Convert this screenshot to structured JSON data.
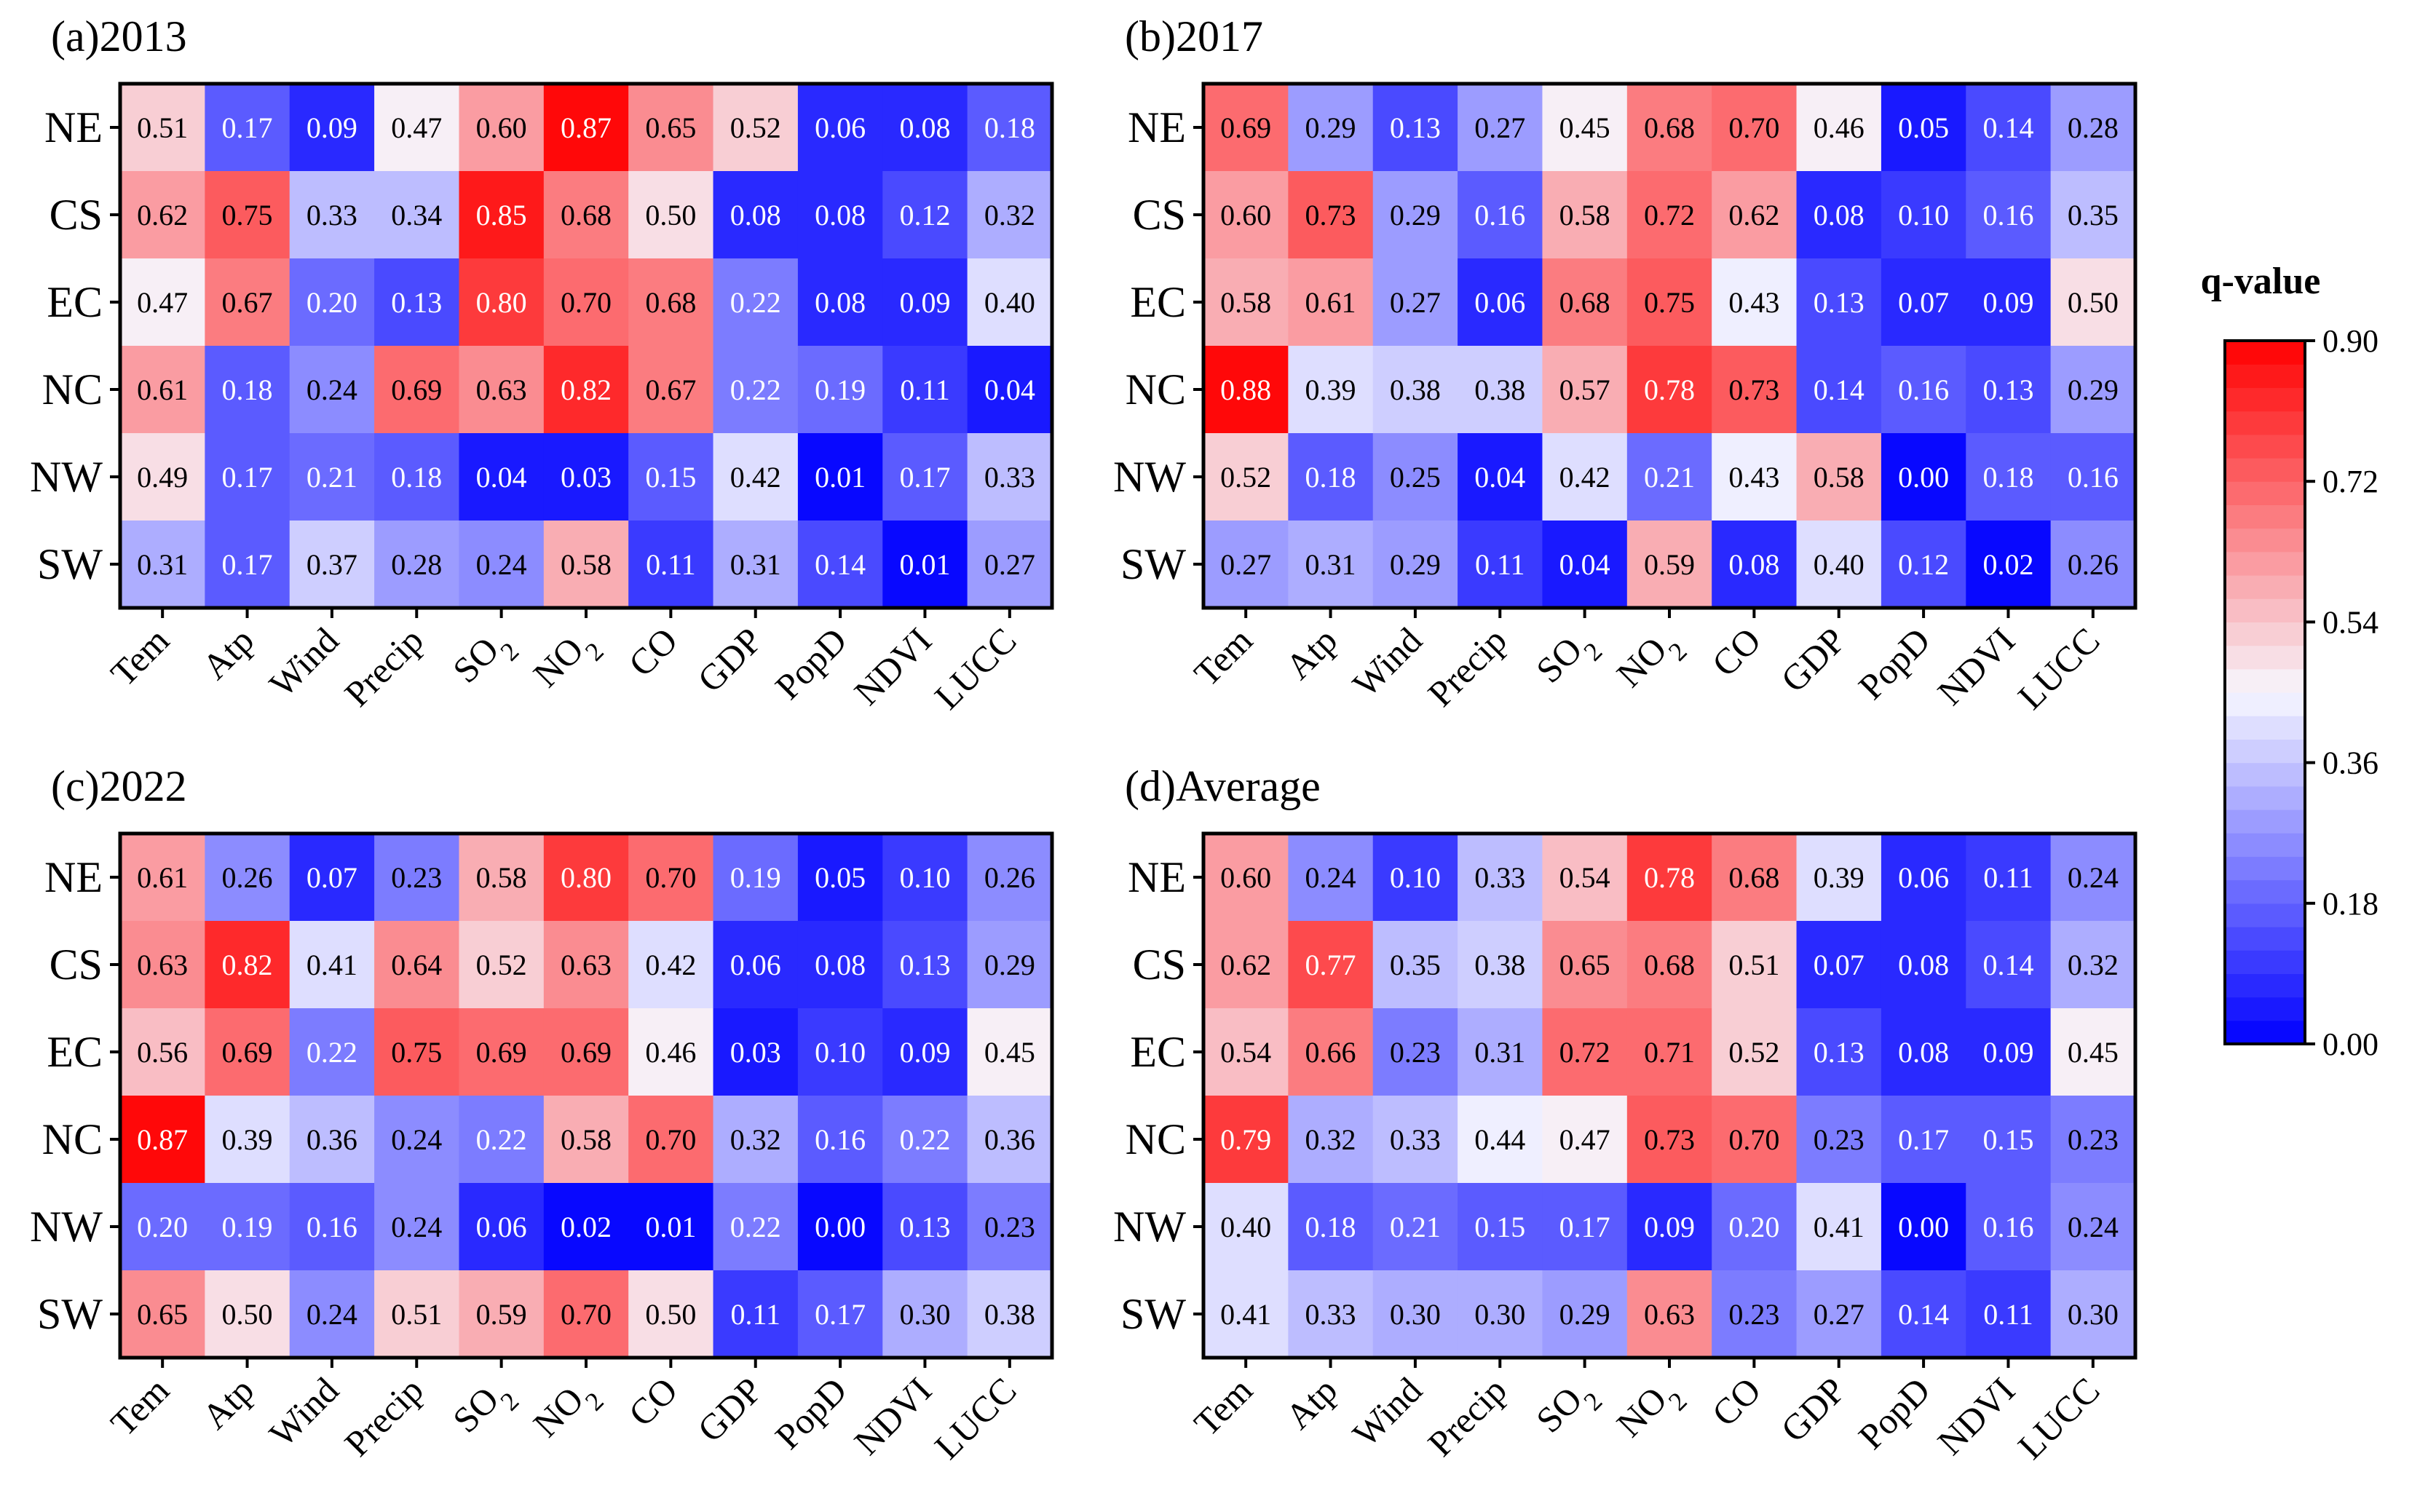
{
  "chart_data": [
    {
      "type": "heatmap",
      "title": "(a)2013",
      "rows": [
        "NE",
        "CS",
        "EC",
        "NC",
        "NW",
        "SW"
      ],
      "columns": [
        "Tem",
        "Atp",
        "Wind",
        "Precip",
        "SO2",
        "NO2",
        "CO",
        "GDP",
        "PopD",
        "NDVI",
        "LUCC"
      ],
      "values": [
        [
          0.51,
          0.17,
          0.09,
          0.47,
          0.6,
          0.87,
          0.65,
          0.52,
          0.06,
          0.08,
          0.18
        ],
        [
          0.62,
          0.75,
          0.33,
          0.34,
          0.85,
          0.68,
          0.5,
          0.08,
          0.08,
          0.12,
          0.32
        ],
        [
          0.47,
          0.67,
          0.2,
          0.13,
          0.8,
          0.7,
          0.68,
          0.22,
          0.08,
          0.09,
          0.4
        ],
        [
          0.61,
          0.18,
          0.24,
          0.69,
          0.63,
          0.82,
          0.67,
          0.22,
          0.19,
          0.11,
          0.04
        ],
        [
          0.49,
          0.17,
          0.21,
          0.18,
          0.04,
          0.03,
          0.15,
          0.42,
          0.01,
          0.17,
          0.33
        ],
        [
          0.31,
          0.17,
          0.37,
          0.28,
          0.24,
          0.58,
          0.11,
          0.31,
          0.14,
          0.01,
          0.27
        ]
      ]
    },
    {
      "type": "heatmap",
      "title": "(b)2017",
      "rows": [
        "NE",
        "CS",
        "EC",
        "NC",
        "NW",
        "SW"
      ],
      "columns": [
        "Tem",
        "Atp",
        "Wind",
        "Precip",
        "SO2",
        "NO2",
        "CO",
        "GDP",
        "PopD",
        "NDVI",
        "LUCC"
      ],
      "values": [
        [
          0.69,
          0.29,
          0.13,
          0.27,
          0.45,
          0.68,
          0.7,
          0.46,
          0.05,
          0.14,
          0.28
        ],
        [
          0.6,
          0.73,
          0.29,
          0.16,
          0.58,
          0.72,
          0.62,
          0.08,
          0.1,
          0.16,
          0.35
        ],
        [
          0.58,
          0.61,
          0.27,
          0.06,
          0.68,
          0.75,
          0.43,
          0.13,
          0.07,
          0.09,
          0.5
        ],
        [
          0.88,
          0.39,
          0.38,
          0.38,
          0.57,
          0.78,
          0.73,
          0.14,
          0.16,
          0.13,
          0.29
        ],
        [
          0.52,
          0.18,
          0.25,
          0.04,
          0.42,
          0.21,
          0.43,
          0.58,
          0.0,
          0.18,
          0.16
        ],
        [
          0.27,
          0.31,
          0.29,
          0.11,
          0.04,
          0.59,
          0.08,
          0.4,
          0.12,
          0.02,
          0.26
        ]
      ]
    },
    {
      "type": "heatmap",
      "title": "(c)2022",
      "rows": [
        "NE",
        "CS",
        "EC",
        "NC",
        "NW",
        "SW"
      ],
      "columns": [
        "Tem",
        "Atp",
        "Wind",
        "Precip",
        "SO2",
        "NO2",
        "CO",
        "GDP",
        "PopD",
        "NDVI",
        "LUCC"
      ],
      "values": [
        [
          0.61,
          0.26,
          0.07,
          0.23,
          0.58,
          0.8,
          0.7,
          0.19,
          0.05,
          0.1,
          0.26
        ],
        [
          0.63,
          0.82,
          0.41,
          0.64,
          0.52,
          0.63,
          0.42,
          0.06,
          0.08,
          0.13,
          0.29
        ],
        [
          0.56,
          0.69,
          0.22,
          0.75,
          0.69,
          0.69,
          0.46,
          0.03,
          0.1,
          0.09,
          0.45
        ],
        [
          0.87,
          0.39,
          0.36,
          0.24,
          0.22,
          0.58,
          0.7,
          0.32,
          0.16,
          0.22,
          0.36
        ],
        [
          0.2,
          0.19,
          0.16,
          0.24,
          0.06,
          0.02,
          0.01,
          0.22,
          0.0,
          0.13,
          0.23
        ],
        [
          0.65,
          0.5,
          0.24,
          0.51,
          0.59,
          0.7,
          0.5,
          0.11,
          0.17,
          0.3,
          0.38
        ]
      ]
    },
    {
      "type": "heatmap",
      "title": "(d)Average",
      "rows": [
        "NE",
        "CS",
        "EC",
        "NC",
        "NW",
        "SW"
      ],
      "columns": [
        "Tem",
        "Atp",
        "Wind",
        "Precip",
        "SO2",
        "NO2",
        "CO",
        "GDP",
        "PopD",
        "NDVI",
        "LUCC"
      ],
      "values": [
        [
          0.6,
          0.24,
          0.1,
          0.33,
          0.54,
          0.78,
          0.68,
          0.39,
          0.06,
          0.11,
          0.24
        ],
        [
          0.62,
          0.77,
          0.35,
          0.38,
          0.65,
          0.68,
          0.51,
          0.07,
          0.08,
          0.14,
          0.32
        ],
        [
          0.54,
          0.66,
          0.23,
          0.31,
          0.72,
          0.71,
          0.52,
          0.13,
          0.08,
          0.09,
          0.45
        ],
        [
          0.79,
          0.32,
          0.33,
          0.44,
          0.47,
          0.73,
          0.7,
          0.23,
          0.17,
          0.15,
          0.23
        ],
        [
          0.4,
          0.18,
          0.21,
          0.15,
          0.17,
          0.09,
          0.2,
          0.41,
          0.0,
          0.16,
          0.24
        ],
        [
          0.41,
          0.33,
          0.3,
          0.3,
          0.29,
          0.63,
          0.23,
          0.27,
          0.14,
          0.11,
          0.3
        ]
      ]
    }
  ],
  "colorbar": {
    "title": "q-value",
    "range": [
      0.0,
      0.9
    ],
    "ticks": [
      "0.00",
      "0.18",
      "0.36",
      "0.54",
      "0.72",
      "0.90"
    ],
    "levels": 30,
    "color_low": "#0000ff",
    "color_mid": "#f7f7ff",
    "color_high": "#ff0000"
  }
}
